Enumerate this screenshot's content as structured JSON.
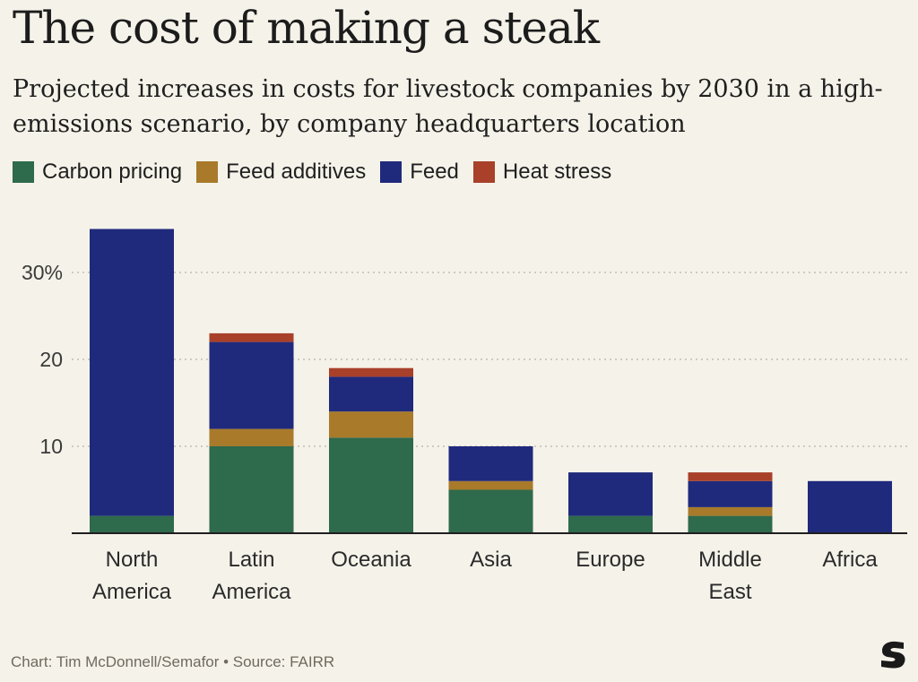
{
  "title": "The cost of making a steak",
  "subtitle": "Projected increases in costs for livestock companies by 2030 in a high-emissions scenario, by company headquarters location",
  "footer": "Chart: Tim McDonnell/Semafor • Source: FAIRR",
  "colors": {
    "background": "#f5f2e9",
    "carbon_pricing": "#2e6a4c",
    "feed_additives": "#a87a2a",
    "feed": "#1f2a7c",
    "heat_stress": "#a8402a",
    "gridline": "#b9b4a8",
    "axis": "#1f1f1f"
  },
  "chart_data": {
    "type": "bar",
    "stacked": true,
    "categories": [
      [
        "North",
        "America"
      ],
      [
        "Latin",
        "America"
      ],
      [
        "Oceania"
      ],
      [
        "Asia"
      ],
      [
        "Europe"
      ],
      [
        "Middle",
        "East"
      ],
      [
        "Africa"
      ]
    ],
    "series": [
      {
        "name": "Carbon pricing",
        "color_key": "carbon_pricing",
        "values": [
          2,
          10,
          11,
          5,
          2,
          2,
          0
        ]
      },
      {
        "name": "Feed additives",
        "color_key": "feed_additives",
        "values": [
          0,
          2,
          3,
          1,
          0,
          1,
          0
        ]
      },
      {
        "name": "Feed",
        "color_key": "feed",
        "values": [
          33,
          10,
          4,
          4,
          5,
          3,
          6
        ]
      },
      {
        "name": "Heat stress",
        "color_key": "heat_stress",
        "values": [
          0,
          1,
          1,
          0,
          0,
          1,
          0
        ]
      }
    ],
    "yticks": [
      10,
      20,
      30
    ],
    "ytick_labels": [
      "10",
      "20",
      "30%"
    ],
    "ylim": [
      0,
      37
    ],
    "grid": "horizontal-dotted",
    "legend_position": "top-left"
  }
}
